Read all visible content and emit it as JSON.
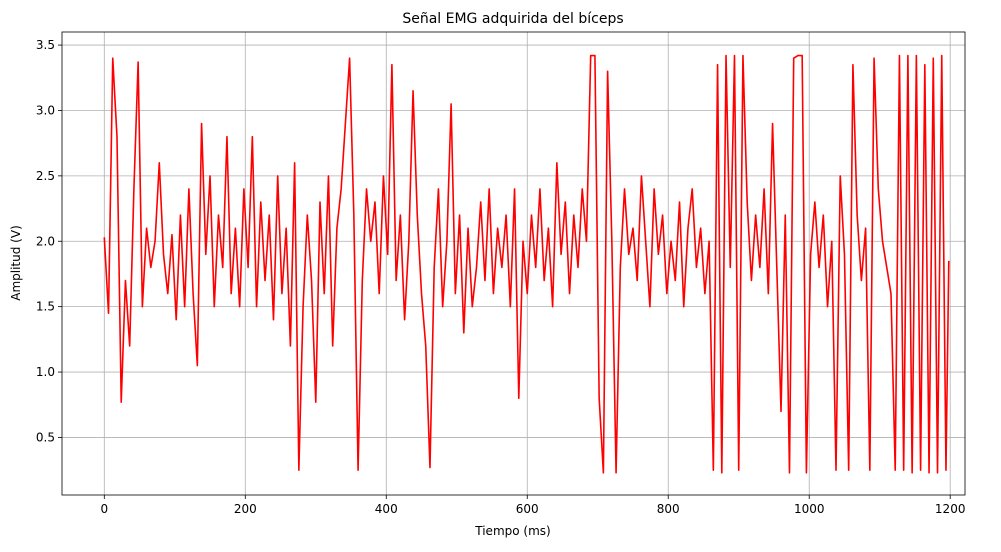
{
  "chart_data": {
    "type": "line",
    "title": "Señal EMG adquirida del bíceps",
    "xlabel": "Tiempo (ms)",
    "ylabel": "Amplitud (V)",
    "grid": true,
    "xlim": [
      -60,
      1221
    ],
    "ylim": [
      0.06,
      3.6
    ],
    "xticks": [
      0,
      200,
      400,
      600,
      800,
      1000,
      1200
    ],
    "yticks": [
      0.5,
      {
        "value": 1.0,
        "label": "1.0"
      },
      1.5,
      {
        "value": 2.0,
        "label": "2.0"
      },
      2.5,
      {
        "value": 3.0,
        "label": "3.0"
      },
      3.5
    ],
    "x": [
      0,
      6,
      12,
      18,
      24,
      30,
      36,
      42,
      48,
      54,
      60,
      66,
      72,
      78,
      84,
      90,
      96,
      102,
      108,
      114,
      120,
      126,
      132,
      138,
      144,
      150,
      156,
      162,
      168,
      174,
      180,
      186,
      192,
      198,
      204,
      210,
      216,
      222,
      228,
      234,
      240,
      246,
      252,
      258,
      264,
      270,
      276,
      282,
      288,
      294,
      300,
      306,
      312,
      318,
      324,
      330,
      336,
      342,
      348,
      354,
      360,
      366,
      372,
      378,
      384,
      390,
      396,
      402,
      408,
      414,
      420,
      426,
      432,
      438,
      444,
      450,
      456,
      462,
      468,
      474,
      480,
      486,
      492,
      498,
      504,
      510,
      516,
      522,
      528,
      534,
      540,
      546,
      552,
      558,
      564,
      570,
      576,
      582,
      588,
      594,
      600,
      606,
      612,
      618,
      624,
      630,
      636,
      642,
      648,
      654,
      660,
      666,
      672,
      678,
      684,
      690,
      696,
      702,
      708,
      714,
      720,
      726,
      732,
      738,
      744,
      750,
      756,
      762,
      768,
      774,
      780,
      786,
      792,
      798,
      804,
      810,
      816,
      822,
      828,
      834,
      840,
      846,
      852,
      858,
      864,
      870,
      876,
      882,
      888,
      894,
      900,
      906,
      912,
      918,
      924,
      930,
      936,
      942,
      948,
      954,
      960,
      966,
      972,
      978,
      984,
      990,
      996,
      1002,
      1008,
      1014,
      1020,
      1026,
      1032,
      1038,
      1044,
      1050,
      1056,
      1062,
      1068,
      1074,
      1080,
      1086,
      1092,
      1098,
      1104,
      1110,
      1116,
      1122,
      1128,
      1134,
      1140,
      1146,
      1152,
      1158,
      1164,
      1170,
      1176,
      1182,
      1188,
      1194,
      1198
    ],
    "series": [
      {
        "name": "EMG",
        "color": "#ff0000",
        "values": [
          2.03,
          1.45,
          3.4,
          2.8,
          0.77,
          1.7,
          1.2,
          2.4,
          3.37,
          1.5,
          2.1,
          1.8,
          2.0,
          2.6,
          1.9,
          1.6,
          2.05,
          1.4,
          2.2,
          1.5,
          2.4,
          1.6,
          1.05,
          2.9,
          1.9,
          2.5,
          1.5,
          2.2,
          1.8,
          2.8,
          1.6,
          2.1,
          1.5,
          2.4,
          1.8,
          2.8,
          1.5,
          2.3,
          1.7,
          2.2,
          1.4,
          2.5,
          1.6,
          2.1,
          1.2,
          2.6,
          0.25,
          1.5,
          2.2,
          1.7,
          0.77,
          2.3,
          1.6,
          2.5,
          1.2,
          2.1,
          2.4,
          2.9,
          3.4,
          2.2,
          0.25,
          1.7,
          2.4,
          2.0,
          2.3,
          1.6,
          2.5,
          1.9,
          3.35,
          1.7,
          2.2,
          1.4,
          2.0,
          3.15,
          2.2,
          1.6,
          1.2,
          0.27,
          1.8,
          2.4,
          1.5,
          2.0,
          3.05,
          1.6,
          2.2,
          1.3,
          2.1,
          1.5,
          1.8,
          2.3,
          1.7,
          2.4,
          1.6,
          2.1,
          1.8,
          2.2,
          1.5,
          2.4,
          0.8,
          2.0,
          1.6,
          2.2,
          1.8,
          2.4,
          1.7,
          2.1,
          1.5,
          2.6,
          1.9,
          2.3,
          1.6,
          2.2,
          1.8,
          2.4,
          2.0,
          3.42,
          3.42,
          0.8,
          0.23,
          3.3,
          2.0,
          0.23,
          1.8,
          2.4,
          1.9,
          2.1,
          1.7,
          2.5,
          2.0,
          1.5,
          2.4,
          1.9,
          2.2,
          1.6,
          2.0,
          1.7,
          2.3,
          1.5,
          2.1,
          2.4,
          1.8,
          2.1,
          1.6,
          2.0,
          0.25,
          3.35,
          0.23,
          3.42,
          1.8,
          3.42,
          0.25,
          3.42,
          2.3,
          1.7,
          2.2,
          1.8,
          2.4,
          1.6,
          2.9,
          1.8,
          0.7,
          2.2,
          0.23,
          3.4,
          3.42,
          3.42,
          0.23,
          1.9,
          2.3,
          1.8,
          2.2,
          1.5,
          2.0,
          0.25,
          2.5,
          1.9,
          0.25,
          3.35,
          2.2,
          1.7,
          2.1,
          0.25,
          3.4,
          2.4,
          2.0,
          1.8,
          1.6,
          0.25,
          3.42,
          0.25,
          3.42,
          0.23,
          3.42,
          0.25,
          3.35,
          0.23,
          3.4,
          0.23,
          3.42,
          0.25,
          1.85
        ]
      }
    ]
  }
}
